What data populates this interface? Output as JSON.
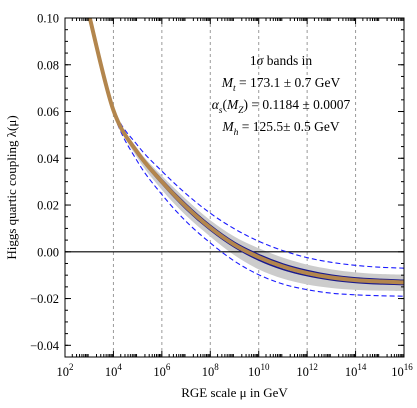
{
  "chart_data": {
    "type": "line",
    "xlabel": "RGE scale μ in GeV",
    "ylabel": "Higgs quartic coupling λ(μ)",
    "x_scale": "log10",
    "xlim": [
      100,
      1e+16
    ],
    "ylim": [
      -0.045,
      0.1
    ],
    "x_ticks": [
      {
        "value": 100,
        "base": "10",
        "exp": "2"
      },
      {
        "value": 10000,
        "base": "10",
        "exp": "4"
      },
      {
        "value": 1000000,
        "base": "10",
        "exp": "6"
      },
      {
        "value": 100000000,
        "base": "10",
        "exp": "8"
      },
      {
        "value": 10000000000,
        "base": "10",
        "exp": "10"
      },
      {
        "value": 1000000000000,
        "base": "10",
        "exp": "12"
      },
      {
        "value": 100000000000000,
        "base": "10",
        "exp": "14"
      },
      {
        "value": 10000000000000000,
        "base": "10",
        "exp": "16"
      }
    ],
    "y_ticks": [
      {
        "value": 0.1,
        "label": "0.10"
      },
      {
        "value": 0.08,
        "label": "0.08"
      },
      {
        "value": 0.06,
        "label": "0.06"
      },
      {
        "value": 0.04,
        "label": "0.04"
      },
      {
        "value": 0.02,
        "label": "0.02"
      },
      {
        "value": 0.0,
        "label": "0.00"
      },
      {
        "value": -0.02,
        "label": "−0.02"
      },
      {
        "value": -0.04,
        "label": "−0.04"
      }
    ],
    "grid": "vertical dashed at x ticks",
    "zero_line": true,
    "annotation": [
      {
        "parts": [
          [
            "1",
            "n"
          ],
          [
            "σ",
            "i"
          ],
          [
            " bands in",
            "n"
          ]
        ]
      },
      {
        "parts": [
          [
            "M",
            "i"
          ],
          [
            "t",
            "sub"
          ],
          [
            " = 173.1 ± 0.7 GeV",
            "n"
          ]
        ]
      },
      {
        "parts": [
          [
            "α",
            "i"
          ],
          [
            "s",
            "sub"
          ],
          [
            "(",
            "n"
          ],
          [
            "M",
            "i"
          ],
          [
            "Z",
            "sub"
          ],
          [
            ") = 0.1184 ± 0.0007",
            "n"
          ]
        ]
      },
      {
        "parts": [
          [
            "M",
            "i"
          ],
          [
            "h",
            "sub"
          ],
          [
            " = 125.5± 0.5 GeV",
            "n"
          ]
        ]
      }
    ],
    "series": [
      {
        "role": "band",
        "fill": "#cccccc",
        "x": [
          1000,
          10000,
          100000,
          1000000,
          10000000,
          100000000,
          1000000000,
          10000000000,
          100000000000,
          1000000000000,
          10000000000000,
          100000000000000,
          1000000000000000,
          10000000000000000
        ],
        "upper": [
          0.101,
          0.0612,
          0.044,
          0.0325,
          0.0225,
          0.0135,
          0.0065,
          0.0015,
          -0.0025,
          -0.0055,
          -0.0075,
          -0.0088,
          -0.0095,
          -0.0098
        ],
        "lower": [
          0.101,
          0.0598,
          0.04,
          0.0265,
          0.0155,
          0.0065,
          -0.0015,
          -0.0075,
          -0.0115,
          -0.014,
          -0.0155,
          -0.0163,
          -0.0166,
          -0.0168
        ]
      },
      {
        "role": "outer-upper",
        "color": "#1a1aff",
        "dash": "5,3",
        "x": [
          1000,
          10000,
          100000,
          1000000,
          10000000,
          100000000,
          1000000000,
          10000000000,
          100000000000,
          1000000000000,
          10000000000000,
          100000000000000,
          1000000000000000,
          10000000000000000
        ],
        "y": [
          0.101,
          0.0615,
          0.0455,
          0.0345,
          0.0248,
          0.0165,
          0.0098,
          0.0045,
          0.0005,
          -0.0025,
          -0.0045,
          -0.0058,
          -0.0066,
          -0.007
        ]
      },
      {
        "role": "outer-lower",
        "color": "#1a1aff",
        "dash": "5,3",
        "x": [
          1000,
          10000,
          100000,
          1000000,
          10000000,
          100000000,
          1000000000,
          10000000000,
          100000000000,
          1000000000000,
          10000000000000,
          100000000000000,
          1000000000000000,
          10000000000000000
        ],
        "y": [
          0.101,
          0.0595,
          0.0385,
          0.0245,
          0.013,
          0.0038,
          -0.004,
          -0.0098,
          -0.0138,
          -0.0162,
          -0.0177,
          -0.0184,
          -0.0188,
          -0.019
        ]
      },
      {
        "role": "central-upper",
        "color": "#1a1a8c",
        "x": [
          1000,
          10000,
          100000,
          1000000,
          10000000,
          100000000,
          1000000000,
          10000000000,
          100000000000,
          1000000000000,
          10000000000000,
          100000000000000,
          1000000000000000,
          10000000000000000
        ],
        "y": [
          0.101,
          0.0608,
          0.043,
          0.0308,
          0.0203,
          0.0113,
          0.004,
          -0.0012,
          -0.0052,
          -0.008,
          -0.01,
          -0.0112,
          -0.0118,
          -0.0122
        ]
      },
      {
        "role": "central-lower",
        "color": "#1a1a8c",
        "x": [
          1000,
          10000,
          100000,
          1000000,
          10000000,
          100000000,
          1000000000,
          10000000000,
          100000000000,
          1000000000000,
          10000000000000,
          100000000000000,
          1000000000000000,
          10000000000000000
        ],
        "y": [
          0.101,
          0.0602,
          0.0418,
          0.0292,
          0.0183,
          0.0093,
          0.002,
          -0.0035,
          -0.0075,
          -0.0102,
          -0.012,
          -0.0131,
          -0.0137,
          -0.014
        ]
      },
      {
        "role": "central",
        "color": "#b3864d",
        "x": [
          1000,
          10000,
          100000,
          1000000,
          10000000,
          100000000,
          1000000000,
          10000000000,
          100000000000,
          1000000000000,
          10000000000000,
          100000000000000,
          1000000000000000,
          10000000000000000
        ],
        "y": [
          0.101,
          0.0605,
          0.0424,
          0.03,
          0.0193,
          0.0103,
          0.003,
          -0.0023,
          -0.0063,
          -0.0091,
          -0.011,
          -0.0121,
          -0.0127,
          -0.0131
        ]
      }
    ]
  }
}
